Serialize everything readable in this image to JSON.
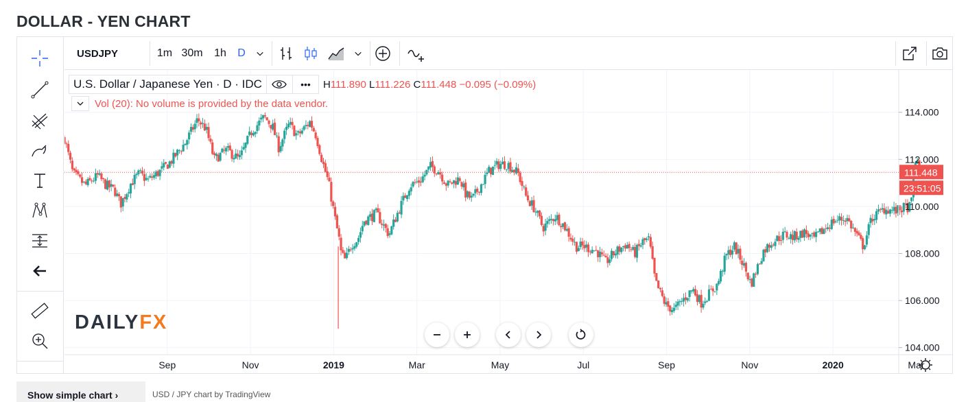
{
  "page_title": "DOLLAR - YEN CHART",
  "toolbar": {
    "symbol": "USDJPY",
    "intervals": [
      "1m",
      "30m",
      "1h",
      "D"
    ],
    "active_interval": "D"
  },
  "legend": {
    "title": "U.S. Dollar / Japanese Yen · D · IDC",
    "high_label": "H",
    "high": "111.890",
    "low_label": "L",
    "low": "111.226",
    "close_label": "C",
    "close": "111.448",
    "change": "−0.095 (−0.09%)",
    "more": "•••"
  },
  "volume_text": "Vol (20): No volume is provided by the data vendor.",
  "logo": {
    "part1": "DAILY",
    "part2": "FX"
  },
  "bottom": {
    "simple_chart_button": "Show simple chart",
    "caption": "USD / JPY chart by TradingView"
  },
  "colors": {
    "up": "#26a69a",
    "down": "#ef5350",
    "grid": "#f0f3fa",
    "axis_text": "#131722"
  },
  "chart_data": {
    "type": "candlestick",
    "symbol": "USDJPY",
    "interval": "D",
    "ylim": [
      103.7,
      115.8
    ],
    "yticks": [
      104,
      106,
      108,
      110,
      112,
      114
    ],
    "ytick_labels": [
      "104.000",
      "106.000",
      "108.000",
      "110.000",
      "112.000",
      "114.000"
    ],
    "xlim": [
      0,
      20.05
    ],
    "xticks": [
      {
        "label": "Sep",
        "pos": 2.47,
        "bold": false
      },
      {
        "label": "Nov",
        "pos": 4.47,
        "bold": false
      },
      {
        "label": "2019",
        "pos": 6.47,
        "bold": true
      },
      {
        "label": "Mar",
        "pos": 8.47,
        "bold": false
      },
      {
        "label": "May",
        "pos": 10.47,
        "bold": false
      },
      {
        "label": "Jul",
        "pos": 12.47,
        "bold": false
      },
      {
        "label": "Sep",
        "pos": 14.47,
        "bold": false
      },
      {
        "label": "Nov",
        "pos": 16.47,
        "bold": false
      },
      {
        "label": "2020",
        "pos": 18.47,
        "bold": true
      },
      {
        "label": "Mar",
        "pos": 20.47,
        "bold": false
      }
    ],
    "last_price": 111.448,
    "last_price_label": "111.448",
    "countdown_label": "23:51:05",
    "close_path": [
      [
        0.0,
        112.9
      ],
      [
        0.2,
        111.4
      ],
      [
        0.5,
        110.9
      ],
      [
        0.8,
        111.3
      ],
      [
        1.0,
        110.9
      ],
      [
        1.2,
        110.7
      ],
      [
        1.35,
        110.1
      ],
      [
        1.6,
        111.0
      ],
      [
        1.8,
        111.4
      ],
      [
        2.0,
        111.1
      ],
      [
        2.3,
        111.5
      ],
      [
        2.55,
        111.9
      ],
      [
        2.9,
        112.7
      ],
      [
        3.2,
        113.7
      ],
      [
        3.4,
        113.3
      ],
      [
        3.6,
        112.0
      ],
      [
        3.9,
        112.4
      ],
      [
        4.2,
        112.0
      ],
      [
        4.5,
        113.2
      ],
      [
        4.8,
        113.8
      ],
      [
        5.0,
        113.4
      ],
      [
        5.15,
        112.5
      ],
      [
        5.4,
        113.5
      ],
      [
        5.6,
        113.0
      ],
      [
        5.9,
        113.6
      ],
      [
        6.05,
        113.0
      ],
      [
        6.2,
        111.9
      ],
      [
        6.35,
        111.0
      ],
      [
        6.5,
        109.5
      ],
      [
        6.6,
        108.6
      ],
      [
        6.65,
        108.0
      ],
      [
        6.75,
        107.7
      ],
      [
        6.9,
        108.4
      ],
      [
        7.05,
        108.6
      ],
      [
        7.2,
        109.4
      ],
      [
        7.5,
        109.7
      ],
      [
        7.8,
        108.8
      ],
      [
        8.0,
        109.7
      ],
      [
        8.3,
        110.9
      ],
      [
        8.55,
        111.1
      ],
      [
        8.8,
        111.7
      ],
      [
        9.0,
        111.5
      ],
      [
        9.2,
        110.9
      ],
      [
        9.5,
        111.2
      ],
      [
        9.65,
        110.5
      ],
      [
        9.8,
        110.3
      ],
      [
        10.0,
        110.9
      ],
      [
        10.2,
        111.5
      ],
      [
        10.45,
        111.8
      ],
      [
        10.65,
        111.8
      ],
      [
        10.9,
        111.4
      ],
      [
        11.1,
        110.4
      ],
      [
        11.3,
        109.9
      ],
      [
        11.5,
        109.1
      ],
      [
        11.8,
        109.6
      ],
      [
        12.0,
        109.2
      ],
      [
        12.3,
        108.3
      ],
      [
        12.5,
        108.3
      ],
      [
        12.8,
        108.1
      ],
      [
        13.0,
        107.6
      ],
      [
        13.2,
        108.0
      ],
      [
        13.5,
        108.4
      ],
      [
        13.7,
        108.0
      ],
      [
        13.9,
        108.5
      ],
      [
        14.05,
        108.6
      ],
      [
        14.2,
        106.8
      ],
      [
        14.45,
        105.8
      ],
      [
        14.65,
        105.6
      ],
      [
        14.9,
        106.1
      ],
      [
        15.1,
        106.5
      ],
      [
        15.3,
        105.9
      ],
      [
        15.5,
        106.3
      ],
      [
        15.7,
        106.7
      ],
      [
        15.9,
        107.9
      ],
      [
        16.1,
        108.3
      ],
      [
        16.3,
        107.6
      ],
      [
        16.5,
        106.7
      ],
      [
        16.8,
        108.1
      ],
      [
        17.0,
        108.5
      ],
      [
        17.3,
        108.8
      ],
      [
        17.5,
        108.7
      ],
      [
        17.8,
        108.9
      ],
      [
        18.0,
        108.6
      ],
      [
        18.3,
        109.1
      ],
      [
        18.5,
        109.4
      ],
      [
        18.8,
        109.5
      ],
      [
        19.0,
        108.9
      ],
      [
        19.2,
        108.3
      ],
      [
        19.4,
        109.5
      ],
      [
        19.7,
        109.9
      ],
      [
        20.0,
        109.8
      ],
      [
        20.1,
        109.9
      ],
      [
        20.35,
        110.0
      ],
      [
        20.4,
        111.4
      ],
      [
        20.45,
        112.0
      ],
      [
        20.55,
        111.45
      ]
    ]
  }
}
